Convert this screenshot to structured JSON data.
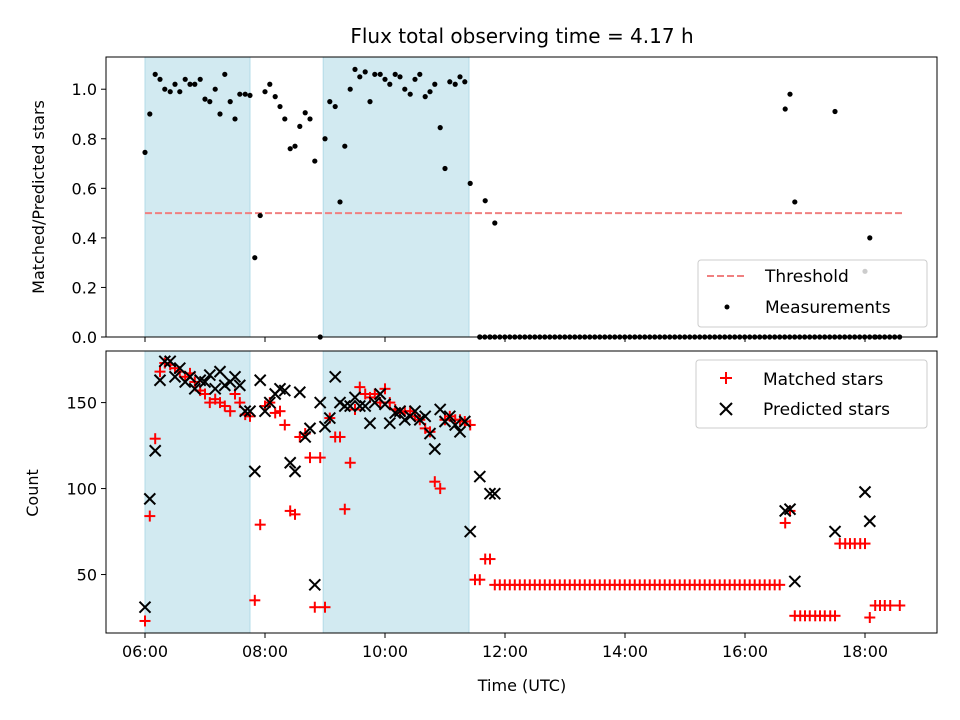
{
  "chart_data": {
    "title": "Flux total observing time = 4.17 h",
    "xlabel": "Time (UTC)",
    "x_ticks": [
      "06:00",
      "08:00",
      "10:00",
      "12:00",
      "14:00",
      "16:00",
      "18:00"
    ],
    "x_range_hours": [
      5.35,
      19.2
    ],
    "shaded_spans_hours": [
      [
        6.0,
        7.75
      ],
      [
        8.97,
        11.4
      ]
    ],
    "shade_color": "#add8e6",
    "panels": [
      {
        "type": "scatter",
        "ylabel": "Matched/Predicted stars",
        "ylim": [
          0.0,
          1.13
        ],
        "y_ticks": [
          0.0,
          0.2,
          0.4,
          0.6,
          0.8,
          1.0
        ],
        "legend_position": "lower-right",
        "threshold": {
          "name": "Threshold",
          "value": 0.5,
          "x_range_hours": [
            6.0,
            18.65
          ],
          "color": "#f08080"
        },
        "series": [
          {
            "name": "Measurements",
            "color": "#000000",
            "marker": "dot",
            "x": [
              6.0,
              6.08,
              6.17,
              6.25,
              6.33,
              6.42,
              6.5,
              6.58,
              6.67,
              6.75,
              6.83,
              6.92,
              7.0,
              7.08,
              7.17,
              7.25,
              7.33,
              7.42,
              7.5,
              7.58,
              7.67,
              7.75,
              7.83,
              7.92,
              8.0,
              8.08,
              8.17,
              8.25,
              8.33,
              8.42,
              8.5,
              8.58,
              8.67,
              8.75,
              8.83,
              8.92,
              9.0,
              9.08,
              9.17,
              9.25,
              9.33,
              9.42,
              9.5,
              9.58,
              9.67,
              9.75,
              9.83,
              9.92,
              10.0,
              10.08,
              10.17,
              10.25,
              10.33,
              10.42,
              10.5,
              10.58,
              10.67,
              10.75,
              10.83,
              10.92,
              11.0,
              11.08,
              11.17,
              11.25,
              11.33,
              11.42,
              11.58,
              11.67,
              11.75,
              11.83,
              16.67,
              16.75,
              16.83,
              17.5,
              18.0,
              18.08,
              18.17
            ],
            "y": [
              0.745,
              0.9,
              1.06,
              1.04,
              1.0,
              0.99,
              1.02,
              0.99,
              1.04,
              1.02,
              1.02,
              1.04,
              0.96,
              0.95,
              1.0,
              0.9,
              1.06,
              0.95,
              0.88,
              0.98,
              0.98,
              0.975,
              0.32,
              0.49,
              0.99,
              1.02,
              0.97,
              0.93,
              0.88,
              0.76,
              0.77,
              0.85,
              0.905,
              0.88,
              0.71,
              0.0,
              0.8,
              0.95,
              0.93,
              0.545,
              0.77,
              1.0,
              1.08,
              1.05,
              1.07,
              0.95,
              1.06,
              1.06,
              1.04,
              1.02,
              1.06,
              1.05,
              1.0,
              0.98,
              1.04,
              1.06,
              0.97,
              0.99,
              1.02,
              0.845,
              0.68,
              1.03,
              1.02,
              1.05,
              1.03,
              0.62,
              0.0,
              0.55,
              0.0,
              0.46,
              0.92,
              0.98,
              0.545,
              0.91,
              0.265,
              0.4,
              0.0
            ],
            "zero_run_hours": [
              11.58,
              18.65
            ],
            "zero_run_step": 0.0833
          }
        ]
      },
      {
        "type": "scatter",
        "ylabel": "Count",
        "ylim": [
          16,
          180
        ],
        "y_ticks": [
          50,
          100,
          150
        ],
        "legend_position": "upper-right",
        "series": [
          {
            "name": "Matched stars",
            "color": "#ff0000",
            "marker": "plus",
            "x": [
              6.0,
              6.08,
              6.17,
              6.25,
              6.33,
              6.42,
              6.5,
              6.58,
              6.67,
              6.75,
              6.83,
              6.92,
              7.0,
              7.08,
              7.17,
              7.25,
              7.33,
              7.42,
              7.5,
              7.58,
              7.67,
              7.75,
              7.83,
              7.92,
              8.0,
              8.08,
              8.17,
              8.25,
              8.33,
              8.42,
              8.5,
              8.58,
              8.67,
              8.75,
              8.83,
              8.92,
              9.0,
              9.08,
              9.17,
              9.25,
              9.33,
              9.42,
              9.5,
              9.58,
              9.67,
              9.75,
              9.83,
              9.92,
              10.0,
              10.08,
              10.17,
              10.25,
              10.33,
              10.42,
              10.5,
              10.58,
              10.67,
              10.75,
              10.83,
              10.92,
              11.0,
              11.08,
              11.17,
              11.25,
              11.33,
              11.42,
              11.5,
              11.58,
              11.67,
              11.75,
              16.67,
              16.75,
              16.83,
              16.92,
              17.0,
              17.08,
              17.17,
              17.25,
              17.33,
              17.42,
              17.5,
              17.58,
              17.67,
              17.75,
              17.83,
              17.92,
              18.0,
              18.08,
              18.17,
              18.25,
              18.33,
              18.42,
              18.58
            ],
            "y": [
              23,
              84,
              129,
              168,
              173,
              172,
              170,
              168,
              165,
              167,
              162,
              157,
              155,
              150,
              152,
              150,
              148,
              145,
              155,
              150,
              143,
              142,
              35,
              79,
              148,
              150,
              144,
              145,
              137,
              87,
              85,
              130,
              132,
              118,
              31,
              118,
              31,
              141,
              130,
              130,
              88,
              115,
              146,
              159,
              155,
              153,
              155,
              150,
              158,
              150,
              146,
              144,
              145,
              145,
              142,
              140,
              135,
              133,
              104,
              100,
              140,
              142,
              140,
              140,
              139,
              137,
              47,
              47,
              59,
              59,
              80,
              87,
              26,
              26,
              26,
              26,
              26,
              26,
              26,
              26,
              26,
              68,
              68,
              68,
              68,
              68,
              68,
              25,
              32,
              32,
              32,
              32,
              32
            ],
            "flat_run_hours": [
              11.83,
              16.58
            ],
            "flat_run_value": 44,
            "flat_run_step": 0.0833
          },
          {
            "name": "Predicted stars",
            "color": "#000000",
            "marker": "x",
            "x": [
              6.0,
              6.08,
              6.17,
              6.25,
              6.33,
              6.42,
              6.5,
              6.58,
              6.67,
              6.75,
              6.83,
              6.92,
              7.0,
              7.08,
              7.17,
              7.25,
              7.33,
              7.42,
              7.5,
              7.58,
              7.67,
              7.75,
              7.83,
              7.92,
              8.0,
              8.08,
              8.17,
              8.25,
              8.33,
              8.42,
              8.5,
              8.58,
              8.67,
              8.75,
              8.83,
              8.92,
              9.0,
              9.08,
              9.17,
              9.25,
              9.33,
              9.42,
              9.5,
              9.58,
              9.67,
              9.75,
              9.83,
              9.92,
              10.0,
              10.08,
              10.17,
              10.25,
              10.33,
              10.42,
              10.5,
              10.58,
              10.67,
              10.75,
              10.83,
              10.92,
              11.0,
              11.08,
              11.17,
              11.25,
              11.33,
              11.42,
              11.58,
              11.75,
              11.83,
              16.67,
              16.75,
              16.83,
              17.5,
              18.0,
              18.08
            ],
            "y": [
              31,
              94,
              122,
              163,
              174,
              174,
              165,
              170,
              162,
              165,
              158,
              163,
              162,
              166,
              158,
              168,
              160,
              162,
              165,
              160,
              145,
              145,
              110,
              163,
              145,
              150,
              155,
              158,
              157,
              115,
              110,
              156,
              130,
              135,
              44,
              150,
              136,
              141,
              165,
              150,
              148,
              148,
              153,
              148,
              148,
              138,
              150,
              155,
              149,
              138,
              144,
              145,
              140,
              142,
              145,
              140,
              142,
              132,
              123,
              146,
              139,
              142,
              137,
              133,
              139,
              75,
              107,
              97,
              97,
              87,
              88,
              46,
              75,
              98,
              81
            ]
          }
        ]
      }
    ]
  }
}
